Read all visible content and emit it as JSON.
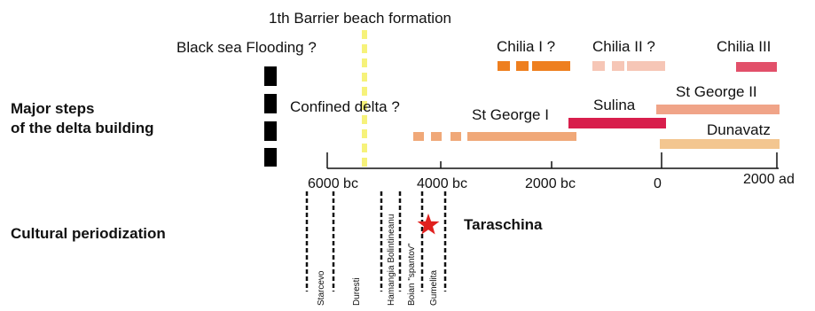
{
  "titles": {
    "barrier_formation": "1th Barrier beach formation",
    "black_sea_flooding": "Black sea Flooding ?",
    "confined_delta": "Confined delta ?"
  },
  "rows": {
    "major_steps_line1": "Major steps",
    "major_steps_line2": "of the delta building",
    "cultural": "Cultural periodization"
  },
  "axis": {
    "ticks": [
      "6000 bc",
      "4000 bc",
      "2000 bc",
      "0",
      "2000 ad"
    ]
  },
  "phases": {
    "chilia1": "Chilia I ?",
    "chilia2": "Chilia II ?",
    "chilia3": "Chilia III",
    "stgeorge1": "St George I",
    "sulina": "Sulina",
    "stgeorge2": "St George II",
    "dunavatz": "Dunavatz"
  },
  "cultures": {
    "starcevo": "Starcevo",
    "duresti": "Duresti",
    "hamangia": "Hamangia  Bolintineanu",
    "boian": "Boian \"spantov\"",
    "gumelita": "Gumelita"
  },
  "site": {
    "name": "Taraschina"
  },
  "colors": {
    "chilia1": "#ee7f1f",
    "chilia2": "#f6c6b6",
    "chilia3": "#e2506a",
    "stgeorge1": "#f0a878",
    "sulina": "#d81e4c",
    "stgeorge2": "#f0a488",
    "dunavatz": "#f3c690",
    "flood": "#000000",
    "barrier": "#f6f27a",
    "star": "#e0201e"
  }
}
